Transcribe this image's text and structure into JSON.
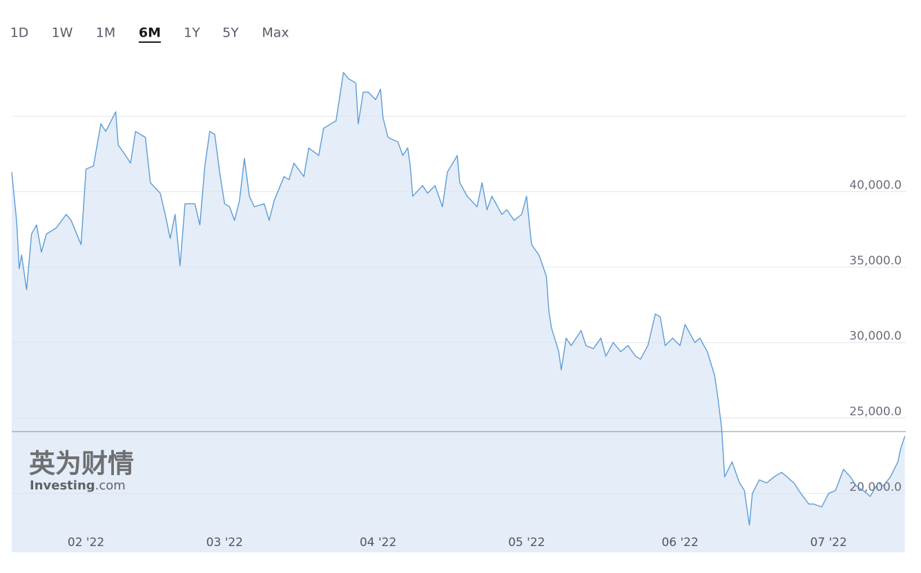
{
  "toolbar": {
    "buttons": [
      "1D",
      "1W",
      "1M",
      "6M",
      "1Y",
      "5Y",
      "Max"
    ],
    "selected": 3
  },
  "watermark": {
    "brand": "英为财情",
    "site": "Investing",
    "suffix": ".com"
  },
  "chart_data": {
    "type": "line",
    "x": [
      0,
      1,
      1.5,
      2,
      3,
      4,
      5,
      6,
      7,
      9,
      11,
      12,
      14,
      14.5,
      15,
      16.5,
      18,
      19,
      21,
      21.5,
      23,
      24,
      25,
      27,
      28,
      30,
      31,
      32,
      33,
      34,
      35,
      37,
      38,
      39,
      40,
      41,
      42,
      43,
      44,
      45,
      46,
      47,
      48,
      49,
      51,
      52,
      53,
      55,
      56,
      57,
      59,
      60,
      62,
      63,
      64.5,
      65.5,
      67,
      68,
      69.5,
      70,
      71,
      72,
      73.5,
      74.5,
      75,
      76,
      78,
      79,
      80,
      80.5,
      81,
      83,
      84,
      85.5,
      87,
      88,
      90,
      90.5,
      92,
      94,
      95,
      96,
      97,
      99,
      100,
      101.5,
      103,
      104,
      105,
      106.5,
      108,
      108.5,
      109,
      110.5,
      111,
      112,
      113,
      115,
      116,
      117.5,
      119,
      120,
      121.5,
      123,
      124.5,
      126,
      127,
      128.5,
      130,
      131,
      132,
      133.5,
      135,
      136,
      138,
      139,
      140.5,
      142,
      142.7,
      143.4,
      144,
      145.5,
      147,
      148,
      149,
      149.6,
      151,
      152.5,
      154,
      155.5,
      156.6,
      158,
      159.4,
      161,
      162,
      163.6,
      165,
      166.4,
      168,
      169.4,
      170.6,
      172,
      173.4,
      175,
      176,
      177.5,
      179,
      179.6,
      180.4
    ],
    "series": [
      {
        "color": "#5b9bd5",
        "area_color": "#e4edf8",
        "values": [
          41300,
          38000,
          34900,
          35800,
          33500,
          37200,
          37800,
          36000,
          37200,
          37600,
          38500,
          38100,
          36500,
          39000,
          41500,
          41700,
          44500,
          44000,
          45300,
          43100,
          42400,
          41900,
          44000,
          43600,
          40600,
          39900,
          38500,
          36900,
          38500,
          35100,
          39200,
          39200,
          37800,
          41700,
          44000,
          43800,
          41300,
          39200,
          39000,
          38100,
          39400,
          42200,
          39700,
          39000,
          39200,
          38100,
          39400,
          41000,
          40800,
          41900,
          41000,
          42900,
          42400,
          44200,
          44500,
          44700,
          47900,
          47500,
          47200,
          44500,
          46600,
          46600,
          46100,
          46800,
          44900,
          43600,
          43300,
          42400,
          42900,
          41700,
          39700,
          40400,
          39900,
          40400,
          39000,
          41300,
          42400,
          40600,
          39700,
          39000,
          40600,
          38800,
          39700,
          38500,
          38800,
          38100,
          38500,
          39700,
          36500,
          35800,
          34400,
          32100,
          31000,
          29400,
          28200,
          30300,
          29800,
          30800,
          29800,
          29600,
          30300,
          29100,
          30000,
          29400,
          29800,
          29100,
          28900,
          29800,
          31900,
          31700,
          29800,
          30300,
          29800,
          31200,
          30000,
          30300,
          29400,
          27800,
          26200,
          24300,
          21100,
          22100,
          20700,
          20200,
          17900,
          20000,
          20900,
          20700,
          21100,
          21400,
          21100,
          20700,
          20000,
          19300,
          19300,
          19100,
          20000,
          20200,
          21600,
          21100,
          20500,
          20200,
          19800,
          20700,
          20500,
          21100,
          22100,
          23000,
          23800
        ]
      }
    ],
    "xlim": [
      0,
      180.6
    ],
    "xticks": [
      {
        "value": 15,
        "label": "02 '22"
      },
      {
        "value": 43,
        "label": "03 '22"
      },
      {
        "value": 74,
        "label": "04 '22"
      },
      {
        "value": 104,
        "label": "05 '22"
      },
      {
        "value": 135,
        "label": "06 '22"
      },
      {
        "value": 165,
        "label": "07 '22"
      }
    ],
    "ylim": [
      16100,
      49000
    ],
    "yticks": [
      {
        "value": 20000,
        "label": "20,000.0"
      },
      {
        "value": 25000,
        "label": "25,000.0"
      },
      {
        "value": 30000,
        "label": "30,000.0"
      },
      {
        "value": 35000,
        "label": "35,000.0"
      },
      {
        "value": 40000,
        "label": "40,000.0"
      },
      {
        "value": 45000,
        "label": null
      }
    ],
    "grid": true,
    "reference_line": 24100
  }
}
